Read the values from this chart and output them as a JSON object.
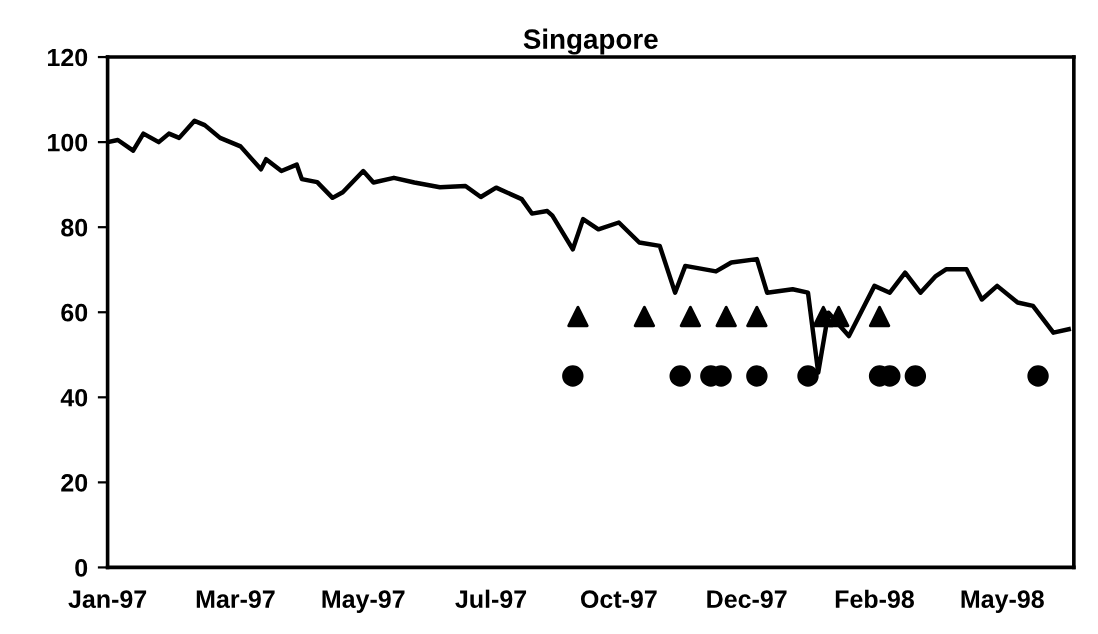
{
  "chart_data": {
    "type": "line",
    "title": "Singapore",
    "categories": [
      "Jan-97",
      null,
      null,
      null,
      null,
      null,
      null,
      null,
      null,
      null,
      null,
      null,
      null,
      null,
      null,
      null,
      null,
      null,
      null,
      null,
      null,
      null,
      null,
      null,
      null,
      "Mar-97",
      null,
      null,
      null,
      null,
      null,
      null,
      null,
      null,
      null,
      null,
      null,
      null,
      null,
      null,
      null,
      null,
      null,
      null,
      null,
      null,
      null,
      null,
      null,
      null,
      "May-97",
      null,
      null,
      null,
      null,
      null,
      null,
      null,
      null,
      null,
      null,
      null,
      null,
      null,
      null,
      null,
      null,
      null,
      null,
      null,
      null,
      null,
      null,
      null,
      null,
      "Jul-97",
      null,
      null,
      null,
      null,
      null,
      null,
      null,
      null,
      null,
      null,
      null,
      null,
      null,
      null,
      null,
      null,
      null,
      null,
      null,
      null,
      null,
      null,
      null,
      null,
      "Oct-97",
      null,
      null,
      null,
      null,
      null,
      null,
      null,
      null,
      null,
      null,
      null,
      null,
      null,
      null,
      null,
      null,
      null,
      null,
      null,
      null,
      null,
      null,
      null,
      null,
      "Dec-97",
      null,
      null,
      null,
      null,
      null,
      null,
      null,
      null,
      null,
      null,
      null,
      null,
      null,
      null,
      null,
      null,
      null,
      null,
      null,
      null,
      null,
      null,
      null,
      null,
      "Feb-98",
      null,
      null,
      null,
      null,
      null,
      null,
      null,
      null,
      null,
      null,
      null,
      null,
      null,
      null,
      null,
      null,
      null,
      null,
      null,
      null,
      null,
      null,
      null,
      null,
      "May-98",
      null,
      null,
      null,
      null,
      null,
      null,
      null,
      null,
      null,
      null,
      null,
      null,
      null,
      null
    ],
    "ylim": [
      0,
      120
    ],
    "yticks": [
      0,
      20,
      40,
      60,
      80,
      100,
      120
    ],
    "grid": false,
    "series": [
      {
        "color": "#000000",
        "marker": "none",
        "values": [
          100,
          null,
          100.5,
          null,
          null,
          98,
          null,
          102,
          null,
          null,
          100,
          null,
          102,
          null,
          101,
          null,
          null,
          105,
          null,
          104,
          null,
          null,
          101,
          null,
          null,
          null,
          99,
          null,
          null,
          null,
          93.6,
          96,
          null,
          null,
          93.2,
          null,
          null,
          94.7,
          91.3,
          null,
          null,
          90.6,
          null,
          null,
          86.9,
          null,
          88.2,
          null,
          null,
          null,
          93.2,
          null,
          90.5,
          null,
          null,
          null,
          91.6,
          null,
          null,
          null,
          90.5,
          null,
          null,
          null,
          null,
          89.4,
          null,
          null,
          null,
          null,
          89.7,
          null,
          null,
          87.1,
          null,
          null,
          89.3,
          null,
          null,
          null,
          null,
          86.6,
          null,
          83.2,
          null,
          null,
          83.8,
          82.7,
          null,
          null,
          null,
          74.8,
          null,
          81.9,
          null,
          null,
          79.5,
          null,
          null,
          null,
          81.1,
          null,
          null,
          null,
          76.4,
          null,
          null,
          null,
          75.6,
          null,
          null,
          64.6,
          null,
          70.9,
          null,
          null,
          null,
          null,
          null,
          69.6,
          null,
          null,
          71.7,
          null,
          null,
          null,
          null,
          72.5,
          null,
          64.6,
          null,
          null,
          null,
          null,
          65.4,
          null,
          null,
          64.6,
          55.2,
          45.8,
          null,
          59.9,
          null,
          null,
          null,
          54.4,
          null,
          null,
          null,
          null,
          66.2,
          null,
          null,
          64.6,
          null,
          null,
          69.3,
          null,
          null,
          64.6,
          null,
          null,
          68.5,
          null,
          70.1,
          null,
          null,
          null,
          70.1,
          null,
          null,
          63,
          null,
          null,
          66.2,
          null,
          null,
          null,
          62.3,
          null,
          null,
          61.5,
          null,
          null,
          null,
          55.2,
          null,
          null,
          56,
          null
        ]
      },
      {
        "type": "scatter",
        "color": "#000000",
        "marker": "triangle",
        "values": [
          null,
          null,
          null,
          null,
          null,
          null,
          null,
          null,
          null,
          null,
          null,
          null,
          null,
          null,
          null,
          null,
          null,
          null,
          null,
          null,
          null,
          null,
          null,
          null,
          null,
          null,
          null,
          null,
          null,
          null,
          null,
          null,
          null,
          null,
          null,
          null,
          null,
          null,
          null,
          null,
          null,
          null,
          null,
          null,
          null,
          null,
          null,
          null,
          null,
          null,
          null,
          null,
          null,
          null,
          null,
          null,
          null,
          null,
          null,
          null,
          null,
          null,
          null,
          null,
          null,
          null,
          null,
          null,
          null,
          null,
          null,
          null,
          null,
          null,
          null,
          null,
          null,
          null,
          null,
          null,
          null,
          null,
          null,
          null,
          null,
          null,
          null,
          null,
          null,
          null,
          null,
          null,
          59,
          null,
          null,
          null,
          null,
          null,
          null,
          null,
          null,
          null,
          null,
          null,
          null,
          59,
          null,
          null,
          null,
          null,
          null,
          null,
          null,
          null,
          59,
          null,
          null,
          null,
          null,
          null,
          null,
          59,
          null,
          null,
          null,
          null,
          null,
          59,
          null,
          null,
          null,
          null,
          null,
          null,
          null,
          null,
          null,
          null,
          null,
          null,
          59,
          null,
          null,
          59,
          null,
          null,
          null,
          null,
          null,
          null,
          null,
          59,
          null,
          null,
          null,
          null,
          null,
          null,
          null,
          null,
          null,
          null,
          null,
          null,
          null,
          null,
          null,
          null,
          null,
          null,
          null,
          null,
          null,
          null,
          null,
          null,
          null,
          null,
          null,
          null,
          null,
          null,
          null,
          null,
          null,
          null,
          null,
          null,
          null,
          null
        ]
      },
      {
        "type": "scatter",
        "color": "#000000",
        "marker": "circle",
        "values": [
          null,
          null,
          null,
          null,
          null,
          null,
          null,
          null,
          null,
          null,
          null,
          null,
          null,
          null,
          null,
          null,
          null,
          null,
          null,
          null,
          null,
          null,
          null,
          null,
          null,
          null,
          null,
          null,
          null,
          null,
          null,
          null,
          null,
          null,
          null,
          null,
          null,
          null,
          null,
          null,
          null,
          null,
          null,
          null,
          null,
          null,
          null,
          null,
          null,
          null,
          null,
          null,
          null,
          null,
          null,
          null,
          null,
          null,
          null,
          null,
          null,
          null,
          null,
          null,
          null,
          null,
          null,
          null,
          null,
          null,
          null,
          null,
          null,
          null,
          null,
          null,
          null,
          null,
          null,
          null,
          null,
          null,
          null,
          null,
          null,
          null,
          null,
          null,
          null,
          null,
          null,
          45,
          null,
          null,
          null,
          null,
          null,
          null,
          null,
          null,
          null,
          null,
          null,
          null,
          null,
          null,
          null,
          null,
          null,
          null,
          null,
          null,
          45,
          null,
          null,
          null,
          null,
          null,
          45,
          null,
          45,
          null,
          null,
          null,
          null,
          null,
          null,
          45,
          null,
          null,
          null,
          null,
          null,
          null,
          null,
          null,
          null,
          45,
          null,
          null,
          null,
          null,
          null,
          null,
          null,
          null,
          null,
          null,
          null,
          null,
          null,
          45,
          null,
          45,
          null,
          null,
          null,
          null,
          45,
          null,
          null,
          null,
          null,
          null,
          null,
          null,
          null,
          null,
          null,
          null,
          null,
          null,
          null,
          null,
          null,
          null,
          null,
          null,
          null,
          null,
          null,
          null,
          45,
          null,
          null,
          null,
          null,
          null,
          null,
          null
        ]
      }
    ]
  }
}
